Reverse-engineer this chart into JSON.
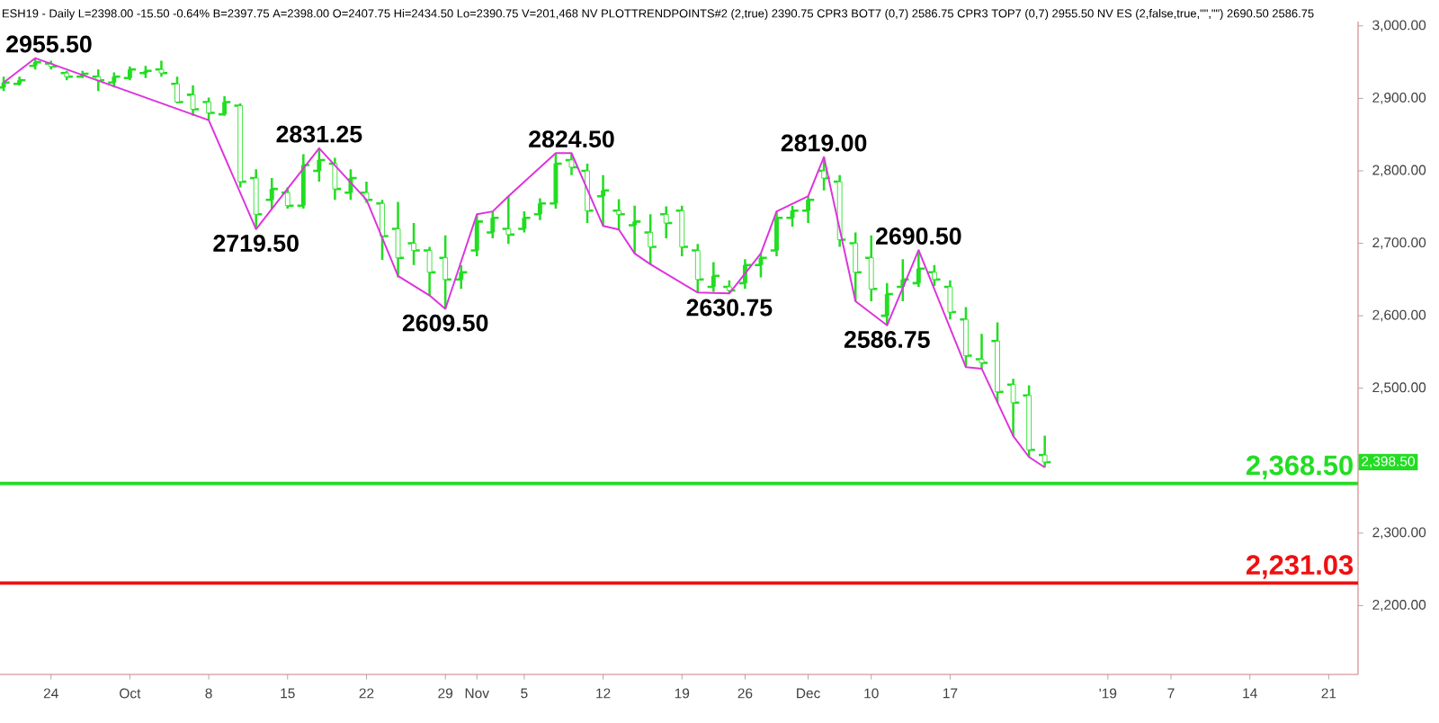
{
  "chart_data": {
    "type": "candlestick",
    "categories": [
      null,
      null,
      null,
      "24",
      null,
      null,
      null,
      null,
      "Oct",
      null,
      null,
      null,
      null,
      "8",
      null,
      null,
      null,
      null,
      "15",
      null,
      null,
      null,
      null,
      "22",
      null,
      null,
      null,
      null,
      "29",
      null,
      "Nov",
      null,
      null,
      "5",
      null,
      null,
      null,
      null,
      "12",
      null,
      null,
      null,
      null,
      "19",
      null,
      null,
      null,
      "26",
      null,
      null,
      null,
      "Dec",
      null,
      null,
      null,
      "10",
      null,
      null,
      null,
      null,
      "17",
      null,
      null,
      null,
      null,
      null,
      null,
      null,
      null,
      null,
      "'19",
      null,
      null,
      null,
      "7",
      null,
      null,
      null,
      null,
      "14",
      null,
      null,
      null,
      null,
      "21",
      null
    ],
    "ohlc": [
      [
        2915,
        2930,
        2910,
        2922
      ],
      [
        2920,
        2930,
        2918,
        2925
      ],
      [
        2945,
        2955.5,
        2940,
        2950
      ],
      [
        2948,
        2952,
        2940,
        2944
      ],
      [
        2935,
        2938,
        2925,
        2930
      ],
      [
        2930,
        2938,
        2928,
        2934
      ],
      [
        2930,
        2940,
        2910,
        2925
      ],
      [
        2922,
        2936,
        2915,
        2930
      ],
      [
        2928,
        2944,
        2925,
        2940
      ],
      [
        2935,
        2945,
        2928,
        2938
      ],
      [
        2940,
        2952,
        2930,
        2935
      ],
      [
        2920,
        2930,
        2893,
        2895
      ],
      [
        2905,
        2918,
        2876,
        2885
      ],
      [
        2895,
        2901,
        2870,
        2880
      ],
      [
        2878,
        2903,
        2876,
        2895
      ],
      [
        2890,
        2893,
        2777,
        2785
      ],
      [
        2790,
        2802,
        2719.5,
        2740
      ],
      [
        2760,
        2790,
        2748,
        2775
      ],
      [
        2770,
        2777,
        2748,
        2752
      ],
      [
        2752,
        2823,
        2748,
        2808
      ],
      [
        2800,
        2831.25,
        2785,
        2815
      ],
      [
        2810,
        2818,
        2760,
        2775
      ],
      [
        2770,
        2802,
        2760,
        2790
      ],
      [
        2770,
        2785,
        2756,
        2760
      ],
      [
        2755,
        2760,
        2677,
        2710
      ],
      [
        2720,
        2757,
        2653,
        2680
      ],
      [
        2700,
        2728,
        2670,
        2690
      ],
      [
        2690,
        2695,
        2628,
        2660
      ],
      [
        2680,
        2711,
        2609.5,
        2650
      ],
      [
        2650,
        2670,
        2637,
        2660
      ],
      [
        2690,
        2740,
        2682,
        2730
      ],
      [
        2715,
        2744,
        2707,
        2735
      ],
      [
        2720,
        2765,
        2699,
        2712
      ],
      [
        2720,
        2744,
        2715,
        2735
      ],
      [
        2740,
        2762,
        2732,
        2755
      ],
      [
        2755,
        2824.5,
        2748,
        2810
      ],
      [
        2815,
        2824.5,
        2794,
        2805
      ],
      [
        2800,
        2810,
        2728,
        2745
      ],
      [
        2765,
        2794,
        2724,
        2773
      ],
      [
        2745,
        2761,
        2719,
        2740
      ],
      [
        2725,
        2752,
        2686,
        2730
      ],
      [
        2715,
        2740,
        2671,
        2695
      ],
      [
        2740,
        2751,
        2707,
        2728
      ],
      [
        2745,
        2752,
        2682,
        2695
      ],
      [
        2690,
        2699,
        2632,
        2650
      ],
      [
        2640,
        2674,
        2633,
        2655
      ],
      [
        2640,
        2649,
        2630.75,
        2635
      ],
      [
        2645,
        2678,
        2637,
        2670
      ],
      [
        2670,
        2686,
        2653,
        2680
      ],
      [
        2690,
        2744,
        2682,
        2735
      ],
      [
        2735,
        2752,
        2723,
        2745
      ],
      [
        2745,
        2765,
        2728,
        2760
      ],
      [
        2800,
        2819,
        2773,
        2790
      ],
      [
        2785,
        2794,
        2695,
        2705
      ],
      [
        2700,
        2715,
        2620,
        2660
      ],
      [
        2680,
        2711,
        2620,
        2637
      ],
      [
        2600,
        2645,
        2586.75,
        2630
      ],
      [
        2640,
        2678,
        2620,
        2650
      ],
      [
        2645,
        2690.5,
        2640,
        2665
      ],
      [
        2660,
        2670,
        2641,
        2650
      ],
      [
        2640,
        2649,
        2595,
        2605
      ],
      [
        2595,
        2612,
        2529,
        2545
      ],
      [
        2540,
        2575,
        2527,
        2535
      ],
      [
        2565,
        2591,
        2480,
        2495
      ],
      [
        2505,
        2513,
        2434,
        2480
      ],
      [
        2490,
        2504,
        2405,
        2415
      ],
      [
        2407.75,
        2434.5,
        2390.75,
        2398
      ],
      null,
      null,
      null,
      null,
      null,
      null,
      null,
      null,
      null,
      null,
      null,
      null,
      null,
      null,
      null,
      null,
      null,
      null,
      null
    ],
    "color": "#22dd22",
    "series": [
      {
        "type": "line",
        "color": "#dd33dd",
        "values": [
          2922,
          null,
          2955.5,
          null,
          null,
          null,
          null,
          null,
          null,
          null,
          null,
          null,
          null,
          2870,
          null,
          null,
          2719.5,
          null,
          null,
          null,
          2831.25,
          null,
          null,
          2760,
          null,
          2655,
          null,
          2628,
          2609.5,
          null,
          2740,
          2744,
          2765,
          null,
          null,
          2824.5,
          2824.5,
          null,
          2724,
          2719,
          2686,
          2671,
          null,
          null,
          2632,
          null,
          2630.75,
          null,
          2686,
          2744,
          null,
          2765,
          2819,
          null,
          2620,
          null,
          2586.75,
          null,
          2690.5,
          null,
          null,
          2529,
          2527,
          null,
          2434,
          2405,
          2390.75,
          null,
          null,
          null,
          null,
          null,
          null,
          null,
          null,
          null,
          null,
          null,
          null,
          null,
          null,
          null,
          null,
          null,
          null,
          null
        ],
        "value_labels": [
          null,
          null,
          "2955.50",
          null,
          null,
          null,
          null,
          null,
          null,
          null,
          null,
          null,
          null,
          null,
          null,
          null,
          "2719.50",
          null,
          null,
          null,
          "2831.25",
          null,
          null,
          null,
          null,
          null,
          null,
          null,
          "2609.50",
          null,
          null,
          null,
          null,
          null,
          null,
          null,
          "2824.50",
          null,
          null,
          null,
          null,
          null,
          null,
          null,
          null,
          null,
          "2630.75",
          null,
          null,
          null,
          null,
          null,
          "2819.00",
          null,
          null,
          null,
          "2586.75",
          null,
          "2690.50",
          null,
          null,
          null,
          null,
          null,
          null,
          null,
          null,
          null,
          null,
          null,
          null,
          null,
          null,
          null,
          null,
          null,
          null,
          null,
          null,
          null,
          null,
          null,
          null,
          null,
          null,
          null
        ]
      }
    ],
    "ylim": [
      2105,
      3006
    ],
    "yticks": [
      {
        "value": 2200,
        "label": "2,200.00"
      },
      {
        "value": 2300,
        "label": "2,300.00"
      },
      {
        "value": 2400,
        "label": null
      },
      {
        "value": 2500,
        "label": "2,500.00"
      },
      {
        "value": 2600,
        "label": "2,600.00"
      },
      {
        "value": 2700,
        "label": "2,700.00"
      },
      {
        "value": 2800,
        "label": "2,800.00"
      },
      {
        "value": 2900,
        "label": "2,900.00"
      },
      {
        "value": 3000,
        "label": "3,000.00"
      }
    ],
    "ref_lines": [
      {
        "axis": "y",
        "value": 2368.5,
        "label": "2,368.50",
        "color": "#22dd22"
      },
      {
        "axis": "y",
        "value": 2231.03,
        "label": "2,231.03",
        "color": "#ee1111"
      }
    ],
    "annotations": [
      "ESH19 - Daily L=2398.00 -15.50 -0.64% B=2397.75 A=2398.00 O=2407.75 Hi=2434.50 Lo=2390.75 V=201,468 NV PLOTTRENDPOINTS#2 (2,true) 2390.75 CPR3 BOT7 (0,7) 2586.75 CPR3 TOP7 (0,7) 2955.50 NV ES (2,false,true,\"\",\"\") 2690.50 2586.75",
      "2,398.50"
    ],
    "grid": false
  }
}
